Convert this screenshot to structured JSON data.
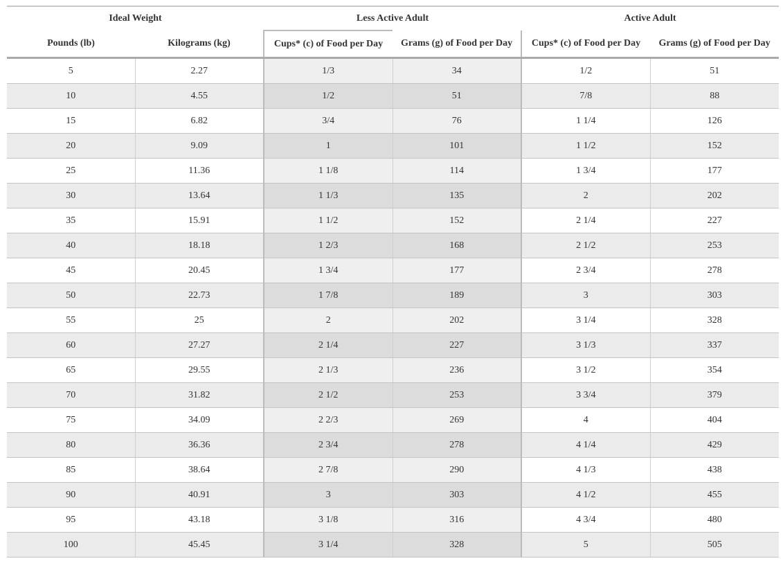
{
  "table": {
    "group_headers": [
      "Ideal Weight",
      "Less Active Adult",
      "Active Adult"
    ],
    "columns": [
      "Pounds (lb)",
      "Kilograms (kg)",
      "Cups* (c) of Food per Day",
      "Grams (g) of Food per Day",
      "Cups* (c) of Food per Day",
      "Grams (g) of Food per Day"
    ],
    "rows": [
      [
        5,
        2.27,
        "1/3",
        34,
        "1/2",
        51
      ],
      [
        10,
        4.55,
        "1/2",
        51,
        "7/8",
        88
      ],
      [
        15,
        6.82,
        "3/4",
        76,
        "1 1/4",
        126
      ],
      [
        20,
        9.09,
        "1",
        101,
        "1 1/2",
        152
      ],
      [
        25,
        11.36,
        "1 1/8",
        114,
        "1 3/4",
        177
      ],
      [
        30,
        13.64,
        "1 1/3",
        135,
        "2",
        202
      ],
      [
        35,
        15.91,
        "1 1/2",
        152,
        "2 1/4",
        227
      ],
      [
        40,
        18.18,
        "1 2/3",
        168,
        "2 1/2",
        253
      ],
      [
        45,
        20.45,
        "1 3/4",
        177,
        "2 3/4",
        278
      ],
      [
        50,
        22.73,
        "1 7/8",
        189,
        "3",
        303
      ],
      [
        55,
        25,
        "2",
        202,
        "3 1/4",
        328
      ],
      [
        60,
        27.27,
        "2 1/4",
        227,
        "3 1/3",
        337
      ],
      [
        65,
        29.55,
        "2 1/3",
        236,
        "3 1/2",
        354
      ],
      [
        70,
        31.82,
        "2 1/2",
        253,
        "3 3/4",
        379
      ],
      [
        75,
        34.09,
        "2 2/3",
        269,
        "4",
        404
      ],
      [
        80,
        36.36,
        "2 3/4",
        278,
        "4 1/4",
        429
      ],
      [
        85,
        38.64,
        "2 7/8",
        290,
        "4 1/3",
        438
      ],
      [
        90,
        40.91,
        "3",
        303,
        "4 1/2",
        455
      ],
      [
        95,
        43.18,
        "3 1/8",
        316,
        "4 3/4",
        480
      ],
      [
        100,
        45.45,
        "3 1/4",
        328,
        "5",
        505
      ]
    ]
  }
}
